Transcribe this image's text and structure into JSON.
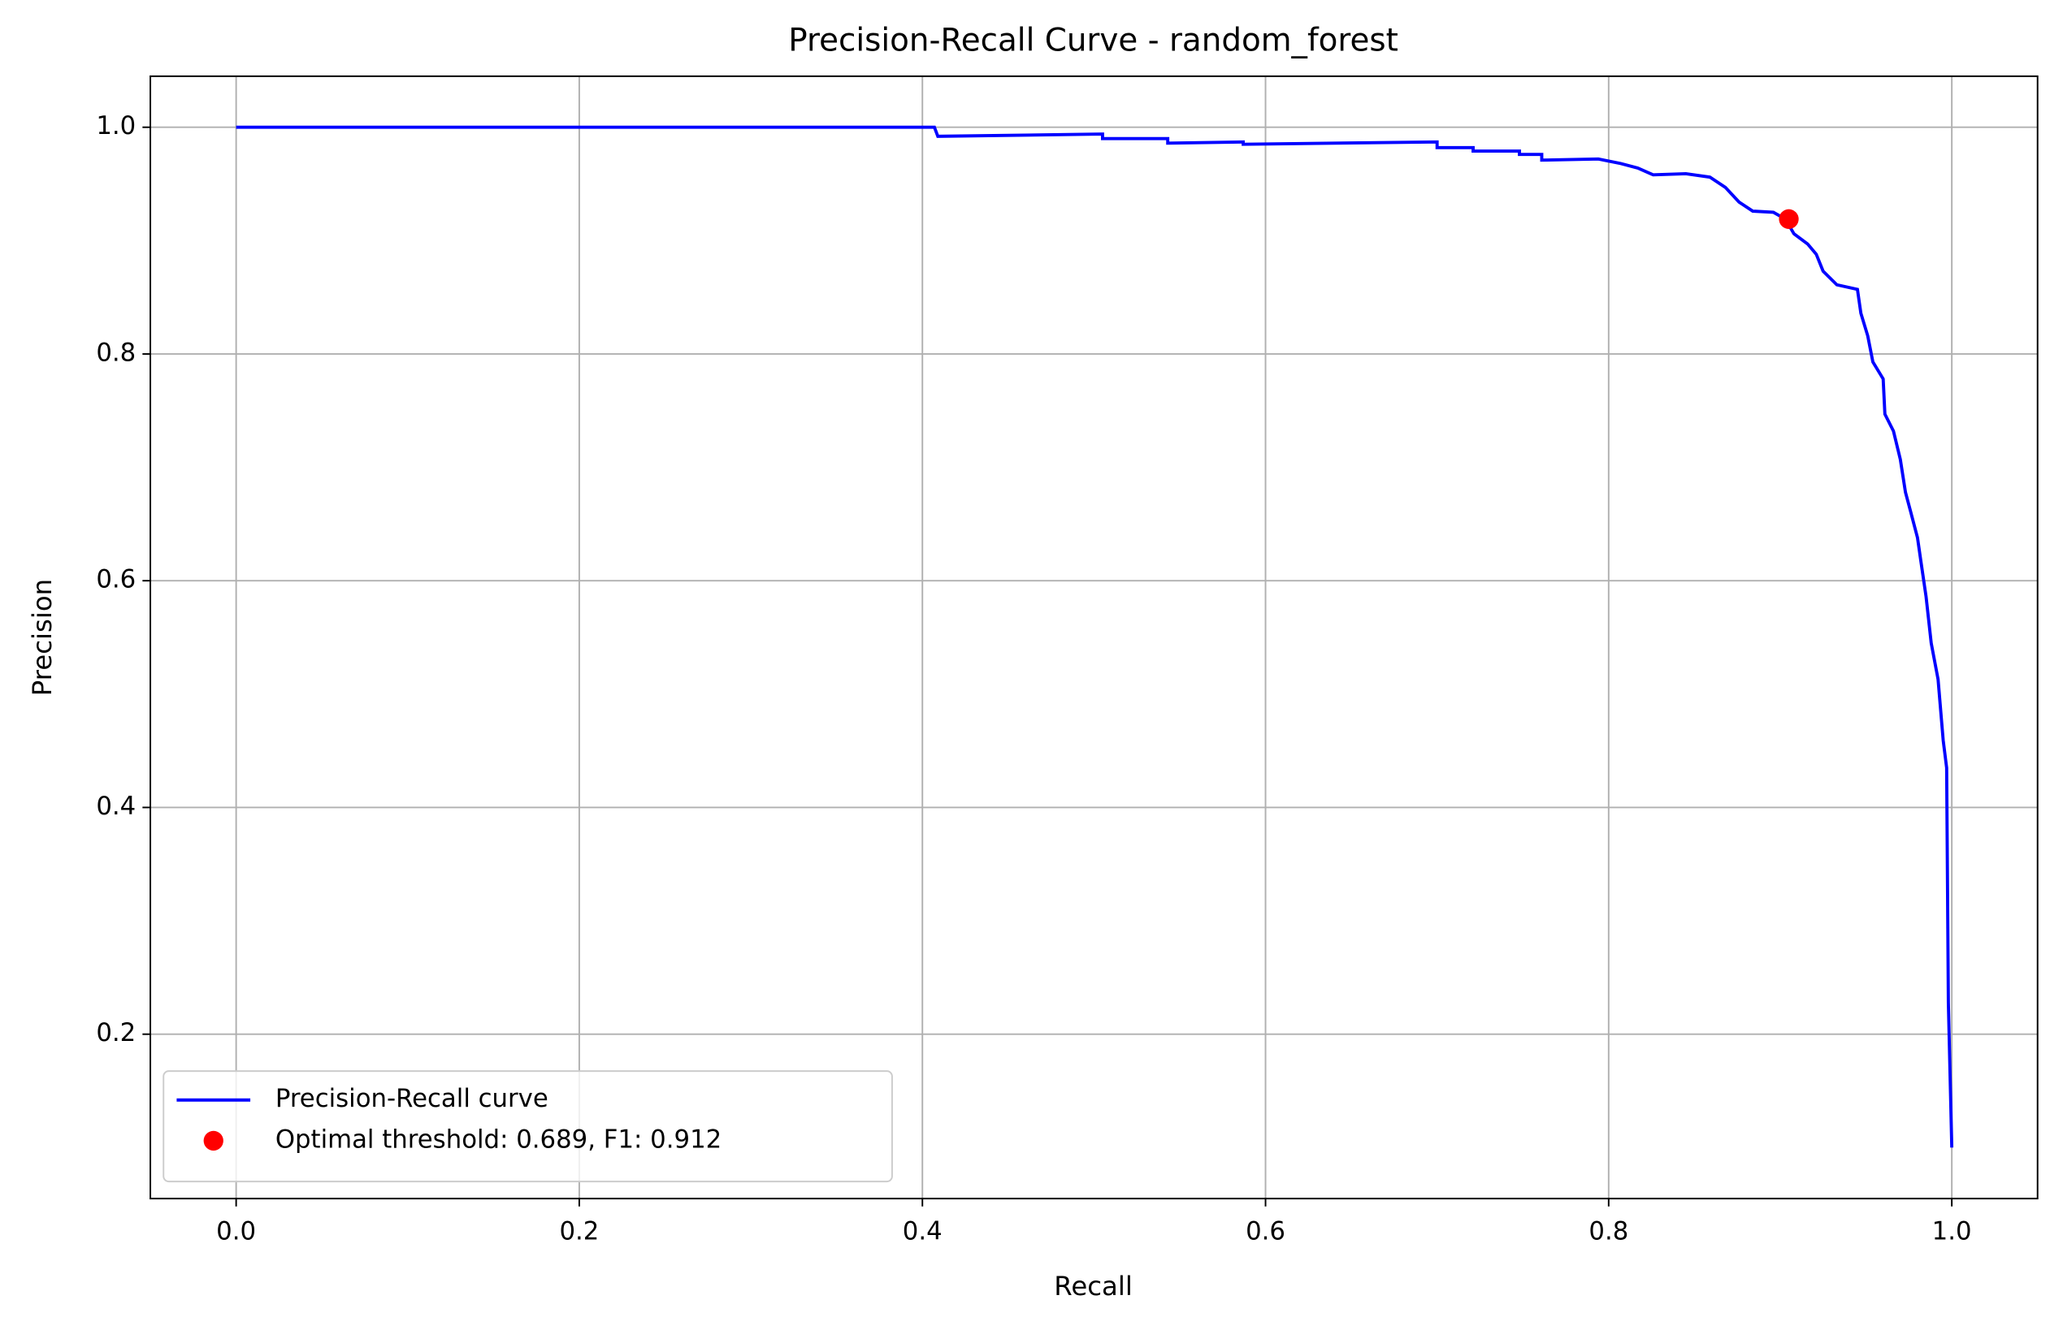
{
  "chart_data": {
    "type": "line",
    "title": "Precision-Recall Curve - random_forest",
    "xlabel": "Recall",
    "ylabel": "Precision",
    "xlim": [
      -0.05,
      1.05
    ],
    "ylim": [
      0.055,
      1.045
    ],
    "xticks": [
      {
        "value": 0,
        "label": "0.0"
      },
      0.2,
      0.4,
      0.6,
      0.8,
      {
        "value": 1,
        "label": "1.0"
      }
    ],
    "yticks": [
      0.2,
      0.4,
      0.6,
      0.8,
      {
        "value": 1,
        "label": "1.0"
      }
    ],
    "grid": true,
    "legend": "lower left",
    "series": [
      {
        "name": "Precision-Recall curve",
        "color": "blue",
        "type": "line",
        "x": [
          0,
          0.407,
          0.409,
          0.505,
          0.505,
          0.543,
          0.543,
          0.587,
          0.587,
          0.7,
          0.7,
          0.721,
          0.721,
          0.748,
          0.748,
          0.761,
          0.761,
          0.794,
          0.807,
          0.817,
          0.826,
          0.845,
          0.859,
          0.868,
          0.876,
          0.884,
          0.896,
          0.903,
          0.908,
          0.916,
          0.921,
          0.925,
          0.933,
          0.945,
          0.947,
          0.951,
          0.954,
          0.96,
          0.961,
          0.966,
          0.97,
          0.973,
          0.976,
          0.98,
          0.982,
          0.985,
          0.988,
          0.992,
          0.995,
          0.997,
          0.998,
          1.0
        ],
        "values": [
          1.0,
          1.0,
          0.992,
          0.994,
          0.99,
          0.99,
          0.986,
          0.987,
          0.985,
          0.987,
          0.982,
          0.982,
          0.979,
          0.979,
          0.976,
          0.976,
          0.971,
          0.972,
          0.968,
          0.964,
          0.958,
          0.959,
          0.956,
          0.947,
          0.934,
          0.926,
          0.925,
          0.919,
          0.906,
          0.897,
          0.888,
          0.873,
          0.861,
          0.857,
          0.836,
          0.816,
          0.793,
          0.778,
          0.747,
          0.732,
          0.707,
          0.678,
          0.661,
          0.638,
          0.617,
          0.586,
          0.545,
          0.513,
          0.459,
          0.435,
          0.228,
          0.1
        ]
      },
      {
        "name": "Optimal threshold: 0.689, F1: 0.912",
        "color": "red",
        "type": "scatter",
        "x": [
          0.905
        ],
        "values": [
          0.919
        ]
      }
    ]
  }
}
